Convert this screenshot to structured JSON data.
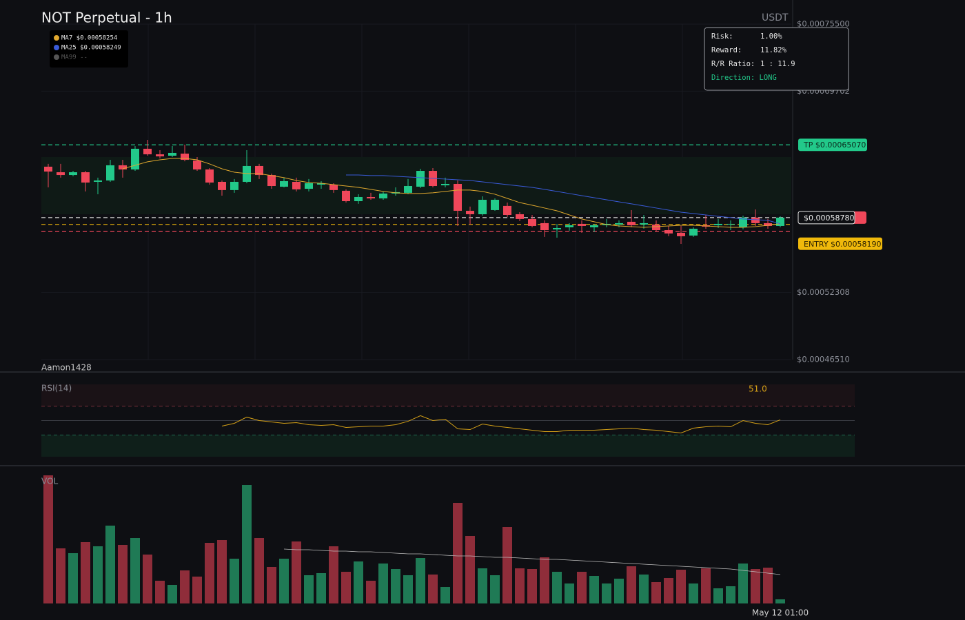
{
  "header": {
    "title": "NOT Perpetual - 1h",
    "quote": "USDT",
    "author": "Aamon1428"
  },
  "risk_panel": {
    "rows": [
      [
        "Risk:",
        "1.00%"
      ],
      [
        "Reward:",
        "11.82%"
      ],
      [
        "R/R Ratio:",
        "1 : 11.9"
      ]
    ],
    "direction": "Direction: LONG"
  },
  "chart_data": [
    {
      "type": "candlestick",
      "up_color": "#22c98a",
      "down_color": "#f0475a",
      "grid": true,
      "ylim": [
        0.0004651,
        0.000755
      ],
      "yticks": [
        {
          "value": 0.000755,
          "label": "$0.00075500"
        },
        {
          "value": 0.00069702,
          "label": "$0.00069702"
        },
        {
          "value": 0.00052308,
          "label": "$0.00052308"
        },
        {
          "value": 0.0004651,
          "label": "$0.00046510"
        }
      ],
      "open": [
        0.0006318,
        0.000627,
        0.0006246,
        0.000627,
        0.0006187,
        0.0006199,
        0.000633,
        0.0006294,
        0.0006473,
        0.0006425,
        0.0006413,
        0.0006431,
        0.0006371,
        0.0006294,
        0.0006187,
        0.0006116,
        0.0006187,
        0.0006324,
        0.0006246,
        0.0006145,
        0.0006187,
        0.0006127,
        0.0006163,
        0.0006163,
        0.000611,
        0.000602,
        0.0006056,
        0.0006044,
        0.0006086,
        0.0006092,
        0.0006145,
        0.0006282,
        0.0006157,
        0.0006169,
        0.0005937,
        0.0005907,
        0.0005943,
        0.0005979,
        0.0005907,
        0.0005866,
        0.000583,
        0.0005776,
        0.0005794,
        0.0005824,
        0.0005794,
        0.0005812,
        0.0005818,
        0.0005842,
        0.0005818,
        0.0005818,
        0.000577,
        0.0005747,
        0.0005723,
        0.0005812,
        0.0005812,
        0.0005818,
        0.0005794,
        0.0005878,
        0.000583,
        0.0005806
      ],
      "high": [
        0.0006342,
        0.0006342,
        0.0006282,
        0.0006282,
        0.0006223,
        0.0006377,
        0.0006377,
        0.0006496,
        0.000655,
        0.0006461,
        0.0006496,
        0.0006508,
        0.0006401,
        0.0006306,
        0.0006199,
        0.0006211,
        0.0006461,
        0.0006342,
        0.0006258,
        0.0006223,
        0.0006223,
        0.0006211,
        0.0006193,
        0.0006175,
        0.0006122,
        0.000608,
        0.0006092,
        0.0006104,
        0.0006139,
        0.0006211,
        0.00063,
        0.0006306,
        0.0006223,
        0.0006199,
        0.0005973,
        0.0006062,
        0.0006044,
        0.0006008,
        0.0005925,
        0.0005901,
        0.0005854,
        0.0005824,
        0.000583,
        0.0005854,
        0.0005824,
        0.0005866,
        0.0005854,
        0.0005943,
        0.0005901,
        0.0005854,
        0.0005806,
        0.0005806,
        0.0005794,
        0.0005901,
        0.0005866,
        0.0005854,
        0.0005895,
        0.0005949,
        0.0005866,
        0.0005889
      ],
      "low": [
        0.0006139,
        0.0006223,
        0.0006235,
        0.0006104,
        0.000608,
        0.0006187,
        0.0006223,
        0.0006282,
        0.0006413,
        0.0006389,
        0.0006401,
        0.0006365,
        0.0006282,
        0.0006163,
        0.0006068,
        0.0006092,
        0.0006175,
        0.0006211,
        0.0006127,
        0.0006139,
        0.0006104,
        0.0006104,
        0.0006127,
        0.0006092,
        0.0006008,
        0.0005997,
        0.0006032,
        0.0006032,
        0.0006068,
        0.000608,
        0.0006133,
        0.0006139,
        0.0006139,
        0.0005806,
        0.0005818,
        0.0005895,
        0.0005937,
        0.0005884,
        0.0005848,
        0.0005794,
        0.0005711,
        0.0005705,
        0.0005765,
        0.0005747,
        0.0005753,
        0.0005794,
        0.0005794,
        0.0005794,
        0.0005782,
        0.0005759,
        0.0005717,
        0.0005651,
        0.0005711,
        0.0005782,
        0.0005788,
        0.000577,
        0.0005776,
        0.0005806,
        0.0005782,
        0.0005794
      ],
      "close": [
        0.0006276,
        0.0006246,
        0.000627,
        0.0006181,
        0.0006199,
        0.000633,
        0.0006294,
        0.0006473,
        0.0006425,
        0.0006407,
        0.0006437,
        0.0006377,
        0.0006294,
        0.0006181,
        0.0006116,
        0.0006187,
        0.0006324,
        0.0006246,
        0.0006151,
        0.0006193,
        0.0006122,
        0.0006175,
        0.0006175,
        0.0006116,
        0.000602,
        0.0006056,
        0.0006044,
        0.0006086,
        0.0006098,
        0.0006151,
        0.0006282,
        0.0006151,
        0.0006169,
        0.0005937,
        0.0005907,
        0.0006032,
        0.0006032,
        0.0005901,
        0.0005866,
        0.0005806,
        0.000577,
        0.0005788,
        0.0005812,
        0.0005806,
        0.0005812,
        0.0005824,
        0.000583,
        0.0005812,
        0.000583,
        0.000577,
        0.0005741,
        0.0005717,
        0.0005782,
        0.00058,
        0.0005824,
        0.0005824,
        0.0005878,
        0.000583,
        0.0005806,
        0.0005878
      ],
      "series": [
        {
          "name": "MA7 $0.00058254",
          "color": "#e0a82e",
          "values": [
            null,
            null,
            null,
            null,
            null,
            null,
            0.00063,
            0.000633,
            0.000636,
            0.0006377,
            0.0006389,
            0.0006389,
            0.0006377,
            0.0006342,
            0.00063,
            0.000627,
            0.0006258,
            0.0006258,
            0.0006241,
            0.0006223,
            0.0006199,
            0.0006181,
            0.0006175,
            0.0006163,
            0.0006151,
            0.0006139,
            0.0006122,
            0.0006104,
            0.0006092,
            0.0006086,
            0.0006086,
            0.0006092,
            0.0006104,
            0.0006116,
            0.0006116,
            0.0006104,
            0.000608,
            0.0006044,
            0.0006008,
            0.0005985,
            0.0005961,
            0.0005937,
            0.0005901,
            0.0005866,
            0.0005842,
            0.0005818,
            0.0005806,
            0.00058,
            0.0005794,
            0.00058,
            0.0005806,
            0.0005812,
            0.0005812,
            0.0005806,
            0.00058,
            0.0005794,
            0.0005794,
            0.00058,
            0.0005812,
            0.00058254
          ]
        },
        {
          "name": "MA25 $0.00058249",
          "color": "#3a5bd9",
          "values": [
            null,
            null,
            null,
            null,
            null,
            null,
            null,
            null,
            null,
            null,
            null,
            null,
            null,
            null,
            null,
            null,
            null,
            null,
            null,
            null,
            null,
            null,
            null,
            null,
            0.0006246,
            0.0006246,
            0.0006241,
            0.0006241,
            0.0006235,
            0.0006229,
            0.0006223,
            0.0006217,
            0.0006211,
            0.0006205,
            0.0006199,
            0.0006187,
            0.0006175,
            0.0006163,
            0.0006151,
            0.0006139,
            0.0006122,
            0.0006104,
            0.0006086,
            0.0006068,
            0.000605,
            0.0006032,
            0.0006014,
            0.0005997,
            0.0005979,
            0.0005961,
            0.0005943,
            0.0005925,
            0.0005913,
            0.0005901,
            0.0005889,
            0.0005878,
            0.0005866,
            0.000586,
            0.0005854,
            0.00058249
          ]
        },
        {
          "name": "MA99 --",
          "color": "#555555",
          "values": [
            null,
            null,
            null,
            null,
            null,
            null,
            null,
            null,
            null,
            null,
            null,
            null,
            null,
            null,
            null,
            null,
            null,
            null,
            null,
            null,
            null,
            null,
            null,
            null,
            null,
            null,
            null,
            null,
            null,
            null,
            null,
            null,
            null,
            null,
            null,
            null,
            null,
            null,
            null,
            null,
            null,
            null,
            null,
            null,
            null,
            null,
            null,
            null,
            null,
            null,
            null,
            null,
            null,
            null,
            null,
            null,
            null,
            null,
            null,
            null
          ]
        }
      ],
      "levels": {
        "tp": {
          "value": 0.0006507,
          "label": "TP $0.00065070",
          "color": "#22c98a"
        },
        "current": {
          "value": 0.0005878,
          "label": "$0.00058780",
          "color": "#d8d8d8"
        },
        "entry": {
          "value": 0.0005819,
          "label": "ENTRY $0.00058190",
          "color": "#f0b90b"
        },
        "stop": {
          "value": 0.0005758,
          "color": "#f0475a"
        }
      }
    },
    {
      "type": "line",
      "title": "RSI(14)",
      "color": "#d4a017",
      "ylim": [
        0,
        100
      ],
      "levels": [
        70,
        50,
        30
      ],
      "values": [
        null,
        null,
        null,
        null,
        null,
        null,
        null,
        null,
        null,
        null,
        null,
        null,
        null,
        null,
        42.4,
        46.2,
        54.8,
        50,
        48.1,
        46.2,
        47.1,
        44.3,
        43.3,
        44.3,
        40.5,
        41.4,
        42.4,
        42.4,
        44.3,
        49,
        56.7,
        50,
        51.9,
        38.6,
        37.6,
        45.2,
        42.4,
        40.5,
        38.6,
        36.7,
        34.8,
        34.8,
        36.7,
        36.7,
        36.7,
        37.6,
        38.6,
        39.5,
        37.6,
        36.7,
        34.8,
        32.9,
        39.5,
        41.4,
        42.4,
        41.4,
        50,
        46.2,
        44.3,
        51
      ],
      "value_labels": [
        null,
        null,
        null,
        null,
        null,
        null,
        null,
        null,
        null,
        null,
        null,
        null,
        null,
        null,
        null,
        null,
        null,
        null,
        null,
        null,
        null,
        null,
        null,
        null,
        null,
        null,
        null,
        null,
        null,
        null,
        null,
        null,
        null,
        null,
        null,
        null,
        null,
        null,
        null,
        null,
        null,
        null,
        null,
        null,
        null,
        null,
        null,
        null,
        null,
        null,
        null,
        null,
        null,
        null,
        null,
        null,
        null,
        null,
        null,
        "51.0"
      ]
    },
    {
      "type": "bar",
      "title": "VOL",
      "up_color": "#1f7a55",
      "down_color": "#8f2d3a",
      "ylim": [
        0,
        190
      ],
      "categories": [
        null,
        null,
        null,
        null,
        null,
        null,
        null,
        null,
        null,
        null,
        null,
        null,
        null,
        null,
        null,
        null,
        null,
        null,
        null,
        null,
        null,
        null,
        null,
        null,
        null,
        null,
        null,
        null,
        null,
        null,
        null,
        null,
        null,
        null,
        null,
        null,
        null,
        null,
        null,
        null,
        null,
        null,
        null,
        null,
        null,
        null,
        null,
        null,
        null,
        null,
        null,
        null,
        null,
        null,
        null,
        null,
        null,
        null,
        null,
        "May 12 01:00"
      ],
      "values": [
        186,
        80,
        73,
        89,
        83,
        113,
        85,
        95,
        71,
        33,
        27,
        48,
        39,
        88,
        92,
        65,
        172,
        95,
        53,
        65,
        90,
        41,
        44,
        83,
        46,
        61,
        33,
        58,
        50,
        41,
        66,
        42,
        24,
        146,
        98,
        51,
        41,
        111,
        51,
        50,
        67,
        46,
        29,
        46,
        40,
        29,
        36,
        54,
        42,
        31,
        37,
        49,
        29,
        51,
        22,
        25,
        58,
        50,
        52,
        6
      ],
      "line": {
        "color": "#bdbdbd",
        "values": [
          null,
          null,
          null,
          null,
          null,
          null,
          null,
          null,
          null,
          null,
          null,
          null,
          null,
          null,
          null,
          null,
          null,
          null,
          null,
          79,
          78,
          78,
          77,
          76,
          76,
          75,
          75,
          74,
          73,
          72,
          72,
          71,
          70,
          69,
          69,
          68,
          67,
          67,
          66,
          65,
          64,
          64,
          63,
          62,
          61,
          60,
          59,
          58,
          57,
          56,
          55,
          54,
          53,
          52,
          51,
          50,
          48,
          46,
          44,
          42
        ]
      }
    }
  ]
}
